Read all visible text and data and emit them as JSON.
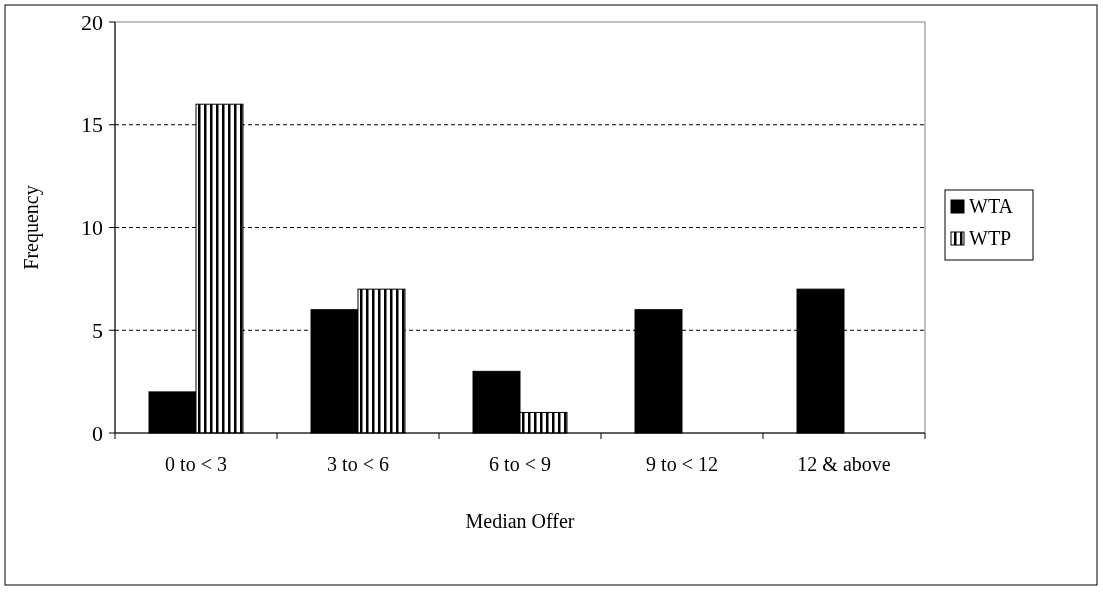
{
  "chart_data": {
    "type": "bar",
    "xlabel": "Median Offer",
    "ylabel": "Frequency",
    "categories": [
      "0 to < 3",
      "3 to < 6",
      "6 to < 9",
      "9 to < 12",
      "12 & above"
    ],
    "series": [
      {
        "name": "WTA",
        "color": "#000000",
        "values": [
          2,
          6,
          3,
          6,
          7
        ]
      },
      {
        "name": "WTP",
        "color": "#000000",
        "values": [
          16,
          7,
          1,
          0,
          0
        ]
      }
    ],
    "ylim": [
      0,
      20
    ],
    "yticks": [
      0,
      5,
      10,
      15,
      20
    ],
    "grid": "y",
    "legend": "right"
  }
}
